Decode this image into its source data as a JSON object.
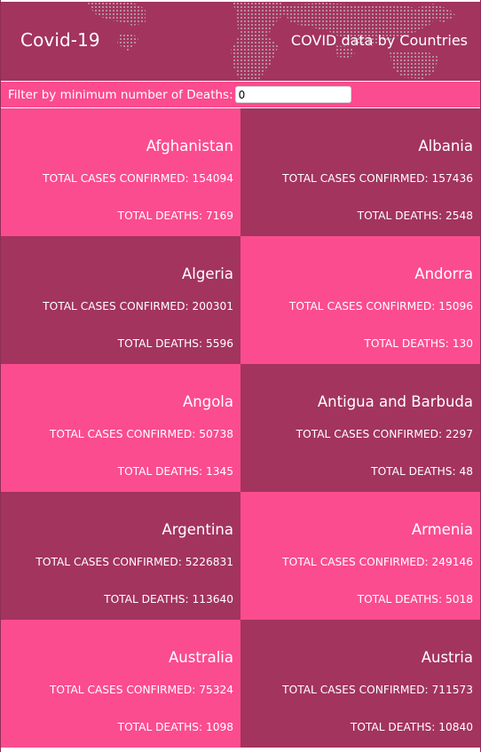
{
  "header": {
    "app_title": "Covid-19",
    "tagline": "COVID data by Countries",
    "background_icon": "world-map-icon"
  },
  "filter": {
    "label": "Filter by minimum number of Deaths:",
    "value": "0"
  },
  "countries": [
    {
      "name": "Afghanistan",
      "confirmed": "TOTAL CASES CONFIRMED: 154094",
      "deaths": "TOTAL DEATHS: 7169",
      "color": "#fb4c8f"
    },
    {
      "name": "Albania",
      "confirmed": "TOTAL CASES CONFIRMED: 157436",
      "deaths": "TOTAL DEATHS: 2548",
      "color": "#a3345d"
    },
    {
      "name": "Algeria",
      "confirmed": "TOTAL CASES CONFIRMED: 200301",
      "deaths": "TOTAL DEATHS: 5596",
      "color": "#a3345d"
    },
    {
      "name": "Andorra",
      "confirmed": "TOTAL CASES CONFIRMED: 15096",
      "deaths": "TOTAL DEATHS: 130",
      "color": "#fb4c8f"
    },
    {
      "name": "Angola",
      "confirmed": "TOTAL CASES CONFIRMED: 50738",
      "deaths": "TOTAL DEATHS: 1345",
      "color": "#fb4c8f"
    },
    {
      "name": "Antigua and Barbuda",
      "confirmed": "TOTAL CASES CONFIRMED: 2297",
      "deaths": "TOTAL DEATHS: 48",
      "color": "#a3345d"
    },
    {
      "name": "Argentina",
      "confirmed": "TOTAL CASES CONFIRMED: 5226831",
      "deaths": "TOTAL DEATHS: 113640",
      "color": "#a3345d"
    },
    {
      "name": "Armenia",
      "confirmed": "TOTAL CASES CONFIRMED: 249146",
      "deaths": "TOTAL DEATHS: 5018",
      "color": "#fb4c8f"
    },
    {
      "name": "Australia",
      "confirmed": "TOTAL CASES CONFIRMED: 75324",
      "deaths": "TOTAL DEATHS: 1098",
      "color": "#fb4c8f"
    },
    {
      "name": "Austria",
      "confirmed": "TOTAL CASES CONFIRMED: 711573",
      "deaths": "TOTAL DEATHS: 10840",
      "color": "#a3345d"
    }
  ],
  "colors": {
    "pink": "#fb4c8f",
    "maroon": "#a3345d",
    "text": "#ffffff"
  }
}
